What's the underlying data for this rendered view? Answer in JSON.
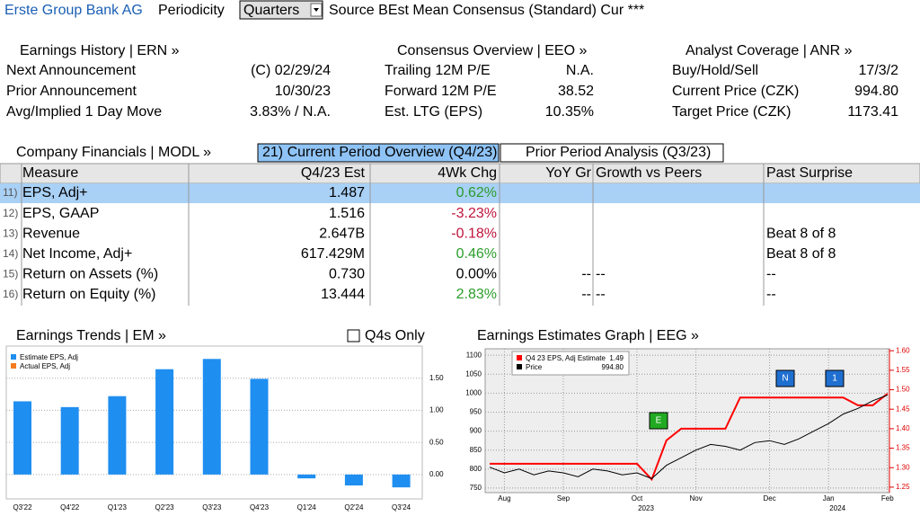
{
  "header": {
    "company": "Erste Group Bank AG",
    "periodicity_label": "Periodicity",
    "periodicity": "Quarters",
    "source": "Source BEst Mean Consensus (Standard) Cur ***"
  },
  "earnings_history": {
    "title": "Earnings History | ERN »",
    "rows": [
      {
        "label": "Next Announcement",
        "value": "(C)  02/29/24"
      },
      {
        "label": "Prior Announcement",
        "value": "10/30/23"
      },
      {
        "label": "Avg/Implied 1 Day Move",
        "value": "3.83% / N.A."
      }
    ]
  },
  "consensus": {
    "title": "Consensus Overview | EEO »",
    "rows": [
      {
        "label": "Trailing 12M P/E",
        "value": "N.A."
      },
      {
        "label": "Forward 12M P/E",
        "value": "38.52"
      },
      {
        "label": "Est. LTG (EPS)",
        "value": "10.35%"
      }
    ]
  },
  "coverage": {
    "title": "Analyst Coverage | ANR »",
    "rows": [
      {
        "label": "Buy/Hold/Sell",
        "value": "17/3/2"
      },
      {
        "label": "Current Price (CZK)",
        "value": "994.80"
      },
      {
        "label": "Target Price (CZK)",
        "value": "1173.41"
      }
    ]
  },
  "financials": {
    "title": "Company Financials | MODL »",
    "tabs": [
      "21) Current Period Overview (Q4/23)",
      "Prior Period Analysis (Q3/23)"
    ],
    "columns": [
      "Measure",
      "Q4/23 Est",
      "4Wk Chg",
      "YoY Gr",
      "Growth vs Peers",
      "Past Surprise"
    ],
    "rows": [
      {
        "index": "11)",
        "measure": "EPS, Adj+",
        "est": "1.487",
        "chg": "0.62%"
      },
      {
        "index": "12)",
        "measure": "EPS, GAAP",
        "est": "1.516",
        "chg": "-3.23%"
      },
      {
        "index": "13)",
        "measure": "Revenue",
        "est": "2.647B",
        "chg": "-0.18%",
        "surprise": "Beat 8 of 8"
      },
      {
        "index": "14)",
        "measure": "Net Income, Adj+",
        "est": "617.429M",
        "chg": "0.46%",
        "surprise": "Beat 8 of 8"
      },
      {
        "index": "15)",
        "measure": "Return on Assets (%)",
        "est": "0.730",
        "chg": "0.00%",
        "yoy": "--",
        "peers": "--",
        "surprise": "--"
      },
      {
        "index": "16)",
        "measure": "Return on Equity (%)",
        "est": "13.444",
        "chg": "2.83%",
        "yoy": "--",
        "peers": "--",
        "surprise": "--"
      }
    ]
  },
  "chart_data": [
    {
      "type": "bar",
      "title": "Earnings Trends | EM »",
      "checkbox": "Q4s Only",
      "categories": [
        "Q3'22",
        "Q4'22",
        "Q1'23",
        "Q2'23",
        "Q3'23",
        "Q4'23",
        "Q1'24",
        "Q2'24",
        "Q3'24"
      ],
      "series": [
        {
          "name": "Estimate EPS, Adj",
          "color": "#1f8ef1",
          "values": [
            1.14,
            1.05,
            1.22,
            1.64,
            1.8,
            1.49,
            -0.06,
            -0.17,
            -0.2
          ]
        },
        {
          "name": "Actual EPS, Adj",
          "color": "#f47b20",
          "values": [
            null,
            null,
            null,
            null,
            null,
            null,
            null,
            null,
            null
          ]
        }
      ],
      "ylim": [
        -0.38,
        2.0
      ],
      "yticks": [
        {
          "value": 0,
          "label": "0.00"
        },
        {
          "value": 0.5,
          "label": "0.50"
        },
        {
          "value": 1,
          "label": "1.00"
        },
        {
          "value": 1.5,
          "label": "1.50"
        }
      ],
      "grid": true
    },
    {
      "type": "line",
      "title": "Earnings Estimates Graph | EEG »",
      "categories": [
        null,
        "Aug",
        null,
        null,
        null,
        "Sep",
        null,
        null,
        null,
        null,
        "Oct",
        null,
        null,
        null,
        "Nov",
        null,
        null,
        null,
        null,
        "Dec",
        null,
        null,
        null,
        "Jan",
        null,
        null,
        null,
        "Feb"
      ],
      "year_labels": [
        "2023",
        "2024"
      ],
      "series": [
        {
          "name": "Q4 23 EPS, Adj Estimate",
          "legend_value": "1.49",
          "color": "#ff0000",
          "axis": "y2",
          "values": [
            1.31,
            1.31,
            1.31,
            1.31,
            1.31,
            1.31,
            1.31,
            1.31,
            1.31,
            1.31,
            1.31,
            1.27,
            1.37,
            1.4,
            1.4,
            1.4,
            1.4,
            1.48,
            1.48,
            1.48,
            1.48,
            1.48,
            1.48,
            1.48,
            1.48,
            1.46,
            1.46,
            1.49
          ]
        },
        {
          "name": "Price",
          "legend_value": "994.80",
          "color": "#000000",
          "values": [
            805,
            790,
            800,
            785,
            795,
            790,
            780,
            800,
            795,
            785,
            790,
            775,
            810,
            830,
            850,
            865,
            860,
            850,
            870,
            875,
            865,
            880,
            900,
            920,
            945,
            960,
            980,
            995
          ]
        }
      ],
      "ylim": [
        738,
        1117
      ],
      "yticks": [
        750,
        800,
        850,
        900,
        950,
        1000,
        1050,
        1100
      ],
      "y2lim": [
        1.236,
        1.605
      ],
      "y2ticks": [
        {
          "value": 1.25,
          "label": "1.25"
        },
        {
          "value": 1.3,
          "label": "1.30"
        },
        {
          "value": 1.35,
          "label": "1.35"
        },
        {
          "value": 1.4,
          "label": "1.40"
        },
        {
          "value": 1.45,
          "label": "1.45"
        },
        {
          "value": 1.5,
          "label": "1.50"
        },
        {
          "value": 1.55,
          "label": "1.55"
        },
        {
          "value": 1.6,
          "label": "1.60"
        }
      ],
      "annotations": [
        "E",
        "N",
        "1"
      ],
      "grid": true
    }
  ]
}
